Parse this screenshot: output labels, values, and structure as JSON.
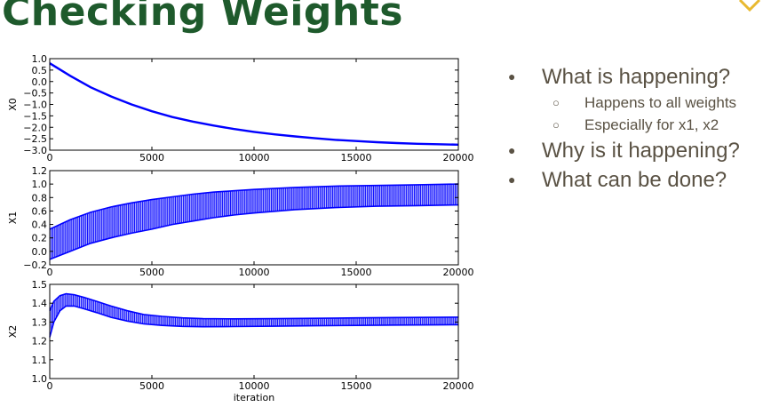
{
  "slide": {
    "title": "Checking Weights",
    "accent_color": "#1e5a2c",
    "bullets": {
      "b1": "What is happening?",
      "b1_sub1": "Happens to all weights",
      "b1_sub2": "Especially for x1, x2",
      "b2": "Why is it happening?",
      "b3": "What can be done?"
    }
  },
  "chart_data": [
    {
      "type": "line",
      "ylabel": "X0",
      "xlabel": "",
      "xlim": [
        0,
        20000
      ],
      "ylim": [
        -3.0,
        1.0
      ],
      "xticks": [
        0,
        5000,
        10000,
        15000,
        20000
      ],
      "yticks": [
        "1.0",
        "0.5",
        "0.0",
        "−0.5",
        "−1.0",
        "−1.5",
        "−2.0",
        "−2.5",
        "−3.0"
      ],
      "series": [
        {
          "color": "#0000ff",
          "x": [
            0,
            1000,
            2000,
            3000,
            4000,
            5000,
            6000,
            7000,
            8000,
            9000,
            10000,
            11000,
            12000,
            13000,
            14000,
            15000,
            16000,
            17000,
            18000,
            19000,
            20000
          ],
          "y": [
            0.8,
            0.25,
            -0.25,
            -0.65,
            -1.0,
            -1.3,
            -1.55,
            -1.75,
            -1.92,
            -2.07,
            -2.2,
            -2.31,
            -2.4,
            -2.48,
            -2.55,
            -2.6,
            -2.65,
            -2.69,
            -2.72,
            -2.74,
            -2.76
          ]
        }
      ]
    },
    {
      "type": "area",
      "ylabel": "X1",
      "xlabel": "",
      "xlim": [
        0,
        20000
      ],
      "ylim": [
        -0.2,
        1.2
      ],
      "xticks": [
        0,
        5000,
        10000,
        15000,
        20000
      ],
      "yticks": [
        "1.2",
        "1.0",
        "0.8",
        "0.6",
        "0.4",
        "0.2",
        "0.0",
        "−0.2"
      ],
      "series": [
        {
          "color": "#0000ff",
          "x": [
            0,
            1000,
            2000,
            3000,
            4000,
            5000,
            6000,
            7000,
            8000,
            9000,
            10000,
            12000,
            14000,
            16000,
            18000,
            20000
          ],
          "upper": [
            0.33,
            0.47,
            0.58,
            0.66,
            0.72,
            0.77,
            0.81,
            0.85,
            0.88,
            0.9,
            0.92,
            0.95,
            0.97,
            0.98,
            0.99,
            1.0
          ],
          "lower": [
            -0.12,
            0.0,
            0.12,
            0.2,
            0.27,
            0.33,
            0.4,
            0.45,
            0.5,
            0.54,
            0.57,
            0.62,
            0.65,
            0.67,
            0.68,
            0.69
          ]
        }
      ]
    },
    {
      "type": "area",
      "ylabel": "X2",
      "xlabel": "iteration",
      "xlim": [
        0,
        20000
      ],
      "ylim": [
        1.0,
        1.5
      ],
      "xticks": [
        0,
        5000,
        10000,
        15000,
        20000
      ],
      "yticks": [
        "1.5",
        "1.4",
        "1.3",
        "1.2",
        "1.1",
        "1.0"
      ],
      "series": [
        {
          "color": "#0000ff",
          "x": [
            0,
            200,
            500,
            800,
            1200,
            1700,
            2300,
            3000,
            3800,
            4600,
            5500,
            6500,
            7500,
            9000,
            11000,
            13000,
            15000,
            17000,
            19000,
            20000
          ],
          "upper": [
            1.36,
            1.41,
            1.44,
            1.45,
            1.445,
            1.43,
            1.41,
            1.385,
            1.36,
            1.34,
            1.33,
            1.322,
            1.318,
            1.317,
            1.318,
            1.32,
            1.322,
            1.324,
            1.325,
            1.326
          ],
          "lower": [
            1.22,
            1.3,
            1.36,
            1.385,
            1.385,
            1.37,
            1.35,
            1.325,
            1.305,
            1.29,
            1.282,
            1.277,
            1.275,
            1.276,
            1.278,
            1.28,
            1.282,
            1.284,
            1.285,
            1.286
          ]
        }
      ]
    }
  ]
}
